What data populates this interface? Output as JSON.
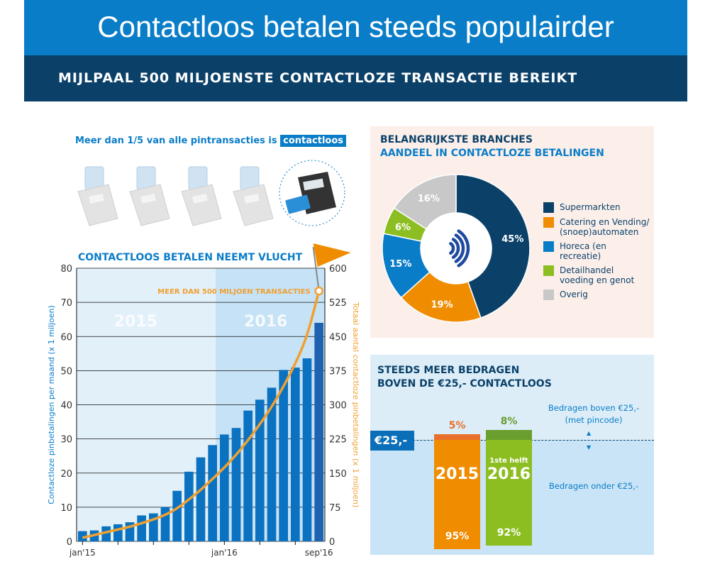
{
  "header": {
    "title": "Contactloos betalen steeds populairder",
    "subtitle": "MIJLPAAL 500 MILJOENSTE CONTACTLOZE TRANSACTIE BEREIKT"
  },
  "terminals": {
    "tagline_prefix": "Meer dan 1/5 van alle pintransacties is",
    "tagline_highlight": "contactloos",
    "count_grey": 4,
    "count_highlighted": 1
  },
  "colors": {
    "primary": "#0a7dc8",
    "navy": "#0b4169",
    "orange": "#f08c00",
    "green": "#8cbe22",
    "grey": "#c8c8c8"
  },
  "chart_data": [
    {
      "type": "bar",
      "title": "CONTACTLOOS BETALEN NEEMT VLUCHT",
      "ylabel": "Contactloze pinbetalingen per maand (x 1 miljoen)",
      "y2label": "Totaal aantal contactloze pinbetalingen (x 1 miljoen)",
      "ylim": [
        0,
        80
      ],
      "yticks": [
        0,
        10,
        20,
        30,
        40,
        50,
        60,
        70,
        80
      ],
      "y2lim": [
        0,
        600
      ],
      "y2ticks": [
        0,
        75,
        150,
        225,
        300,
        375,
        450,
        525,
        600
      ],
      "xtick_labels": [
        "jan'15",
        "jan'16",
        "sep'16"
      ],
      "period_labels": [
        "2015",
        "2016"
      ],
      "annotation": "MEER DAN 500 MILJOEN TRANSACTIES",
      "grid": true,
      "months": [
        "jan 2015",
        "feb 2015",
        "mrt 2015",
        "apr 2015",
        "mei 2015",
        "jun 2015",
        "jul 2015",
        "aug 2015",
        "sep 2015",
        "okt 2015",
        "nov 2015",
        "dec 2015",
        "jan 2016",
        "feb 2016",
        "mrt 2016",
        "apr 2016",
        "mei 2016",
        "jun 2016",
        "jul 2016",
        "aug 2016",
        "sep 2016"
      ],
      "series": [
        {
          "type": "bar",
          "axis": "left",
          "values": [
            3,
            3.2,
            4.4,
            5,
            5.6,
            7.6,
            8.2,
            10,
            14.8,
            20.4,
            24.6,
            28.2,
            31.3,
            33.2,
            38.3,
            41.5,
            45,
            50.2,
            50.9,
            53.6,
            64
          ]
        },
        {
          "type": "line",
          "axis": "right",
          "values": [
            8,
            14,
            20,
            26,
            32,
            40,
            48,
            58,
            72,
            92,
            113,
            137,
            162,
            190,
            222,
            257,
            295,
            340,
            390,
            450,
            550
          ]
        }
      ]
    },
    {
      "type": "pie",
      "title": "BELANGRIJKSTE BRANCHES",
      "subtitle": "AANDEEL IN CONTACTLOZE BETALINGEN",
      "legend": "right",
      "slices": [
        {
          "label": "Supermarkten",
          "value": 45,
          "display": "45%",
          "color": "#0b4169"
        },
        {
          "label": "Catering en Vending/ (snoep)automaten",
          "value": 19,
          "display": "19%",
          "color": "#f08c00"
        },
        {
          "label": "Horeca (en recreatie)",
          "value": 15,
          "display": "15%",
          "color": "#0a7dc8"
        },
        {
          "label": "Detailhandel voeding en genot",
          "value": 6,
          "display": "6%",
          "color": "#8cbe22"
        },
        {
          "label": "Overig",
          "value": 16,
          "display": "16%",
          "color": "#c8c8c8"
        }
      ]
    },
    {
      "type": "bar",
      "title": "STEEDS MEER BEDRAGEN",
      "subtitle": "BOVEN DE €25,- CONTACTLOOS",
      "threshold_label": "€25,-",
      "above_label": "Bedragen boven €25,-",
      "above_sublabel": "(met pincode)",
      "below_label": "Bedragen onder €25,-",
      "bars": [
        {
          "label": "2015",
          "prefix": "",
          "above": 5,
          "below": 95,
          "above_display": "5%",
          "below_display": "95%",
          "color": "#f08c00",
          "top_color": "#e8702a"
        },
        {
          "label": "2016",
          "prefix": "1ste helft",
          "above": 8,
          "below": 92,
          "above_display": "8%",
          "below_display": "92%",
          "color": "#8cbe22",
          "top_color": "#6a9e2e"
        }
      ]
    }
  ]
}
